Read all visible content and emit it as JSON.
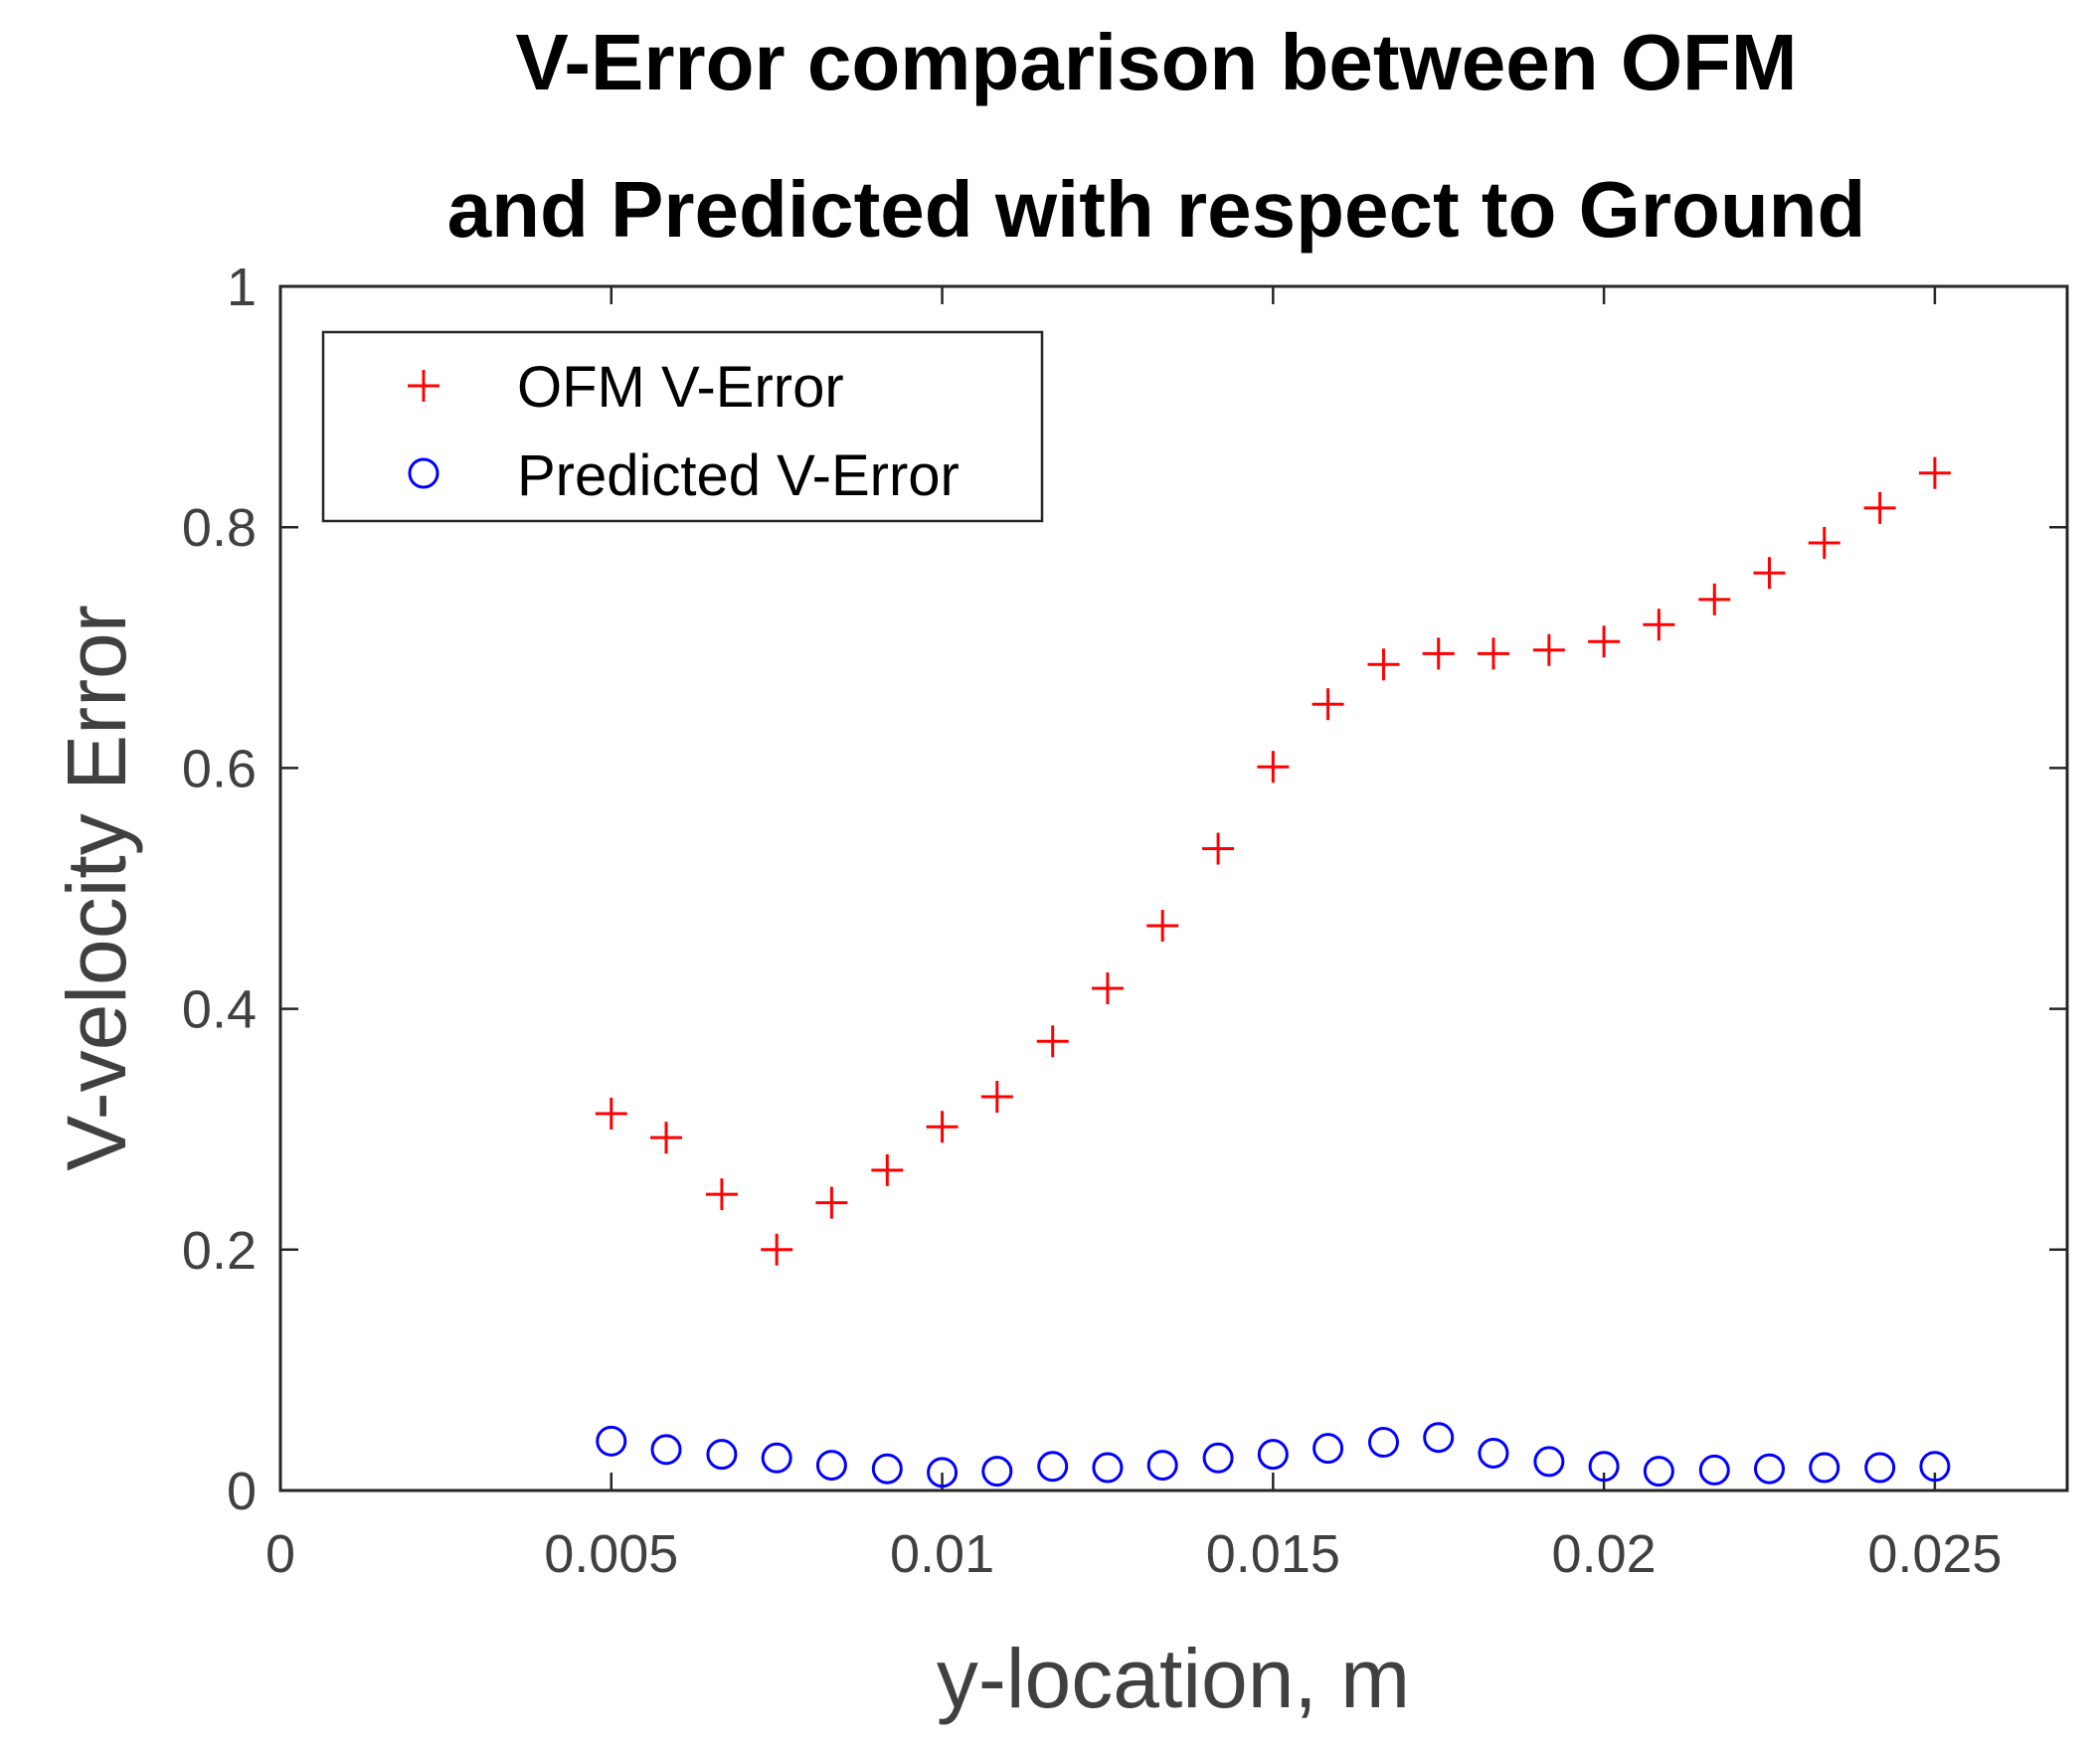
{
  "chart_data": {
    "type": "scatter",
    "title": [
      "V-Error comparison between OFM",
      "and Predicted with respect to Ground"
    ],
    "xlabel": "y-location, m",
    "ylabel": "V-velocity Error",
    "xlim": [
      0,
      0.027
    ],
    "ylim": [
      0,
      1
    ],
    "xticks": [
      0,
      0.005,
      0.01,
      0.015,
      0.02,
      0.025
    ],
    "xtick_labels": [
      "0",
      "0.005",
      "0.01",
      "0.015",
      "0.02",
      "0.025"
    ],
    "yticks": [
      0,
      0.2,
      0.4,
      0.6,
      0.8,
      1
    ],
    "ytick_labels": [
      "0",
      "0.2",
      "0.4",
      "0.6",
      "0.8",
      "1"
    ],
    "grid": false,
    "legend_position": "top-left",
    "x": [
      0.005,
      0.00583,
      0.00667,
      0.0075,
      0.00833,
      0.00917,
      0.01,
      0.01083,
      0.01167,
      0.0125,
      0.01333,
      0.01417,
      0.015,
      0.01583,
      0.01667,
      0.0175,
      0.01833,
      0.01917,
      0.02,
      0.02083,
      0.02167,
      0.0225,
      0.02333,
      0.02417,
      0.025
    ],
    "series": [
      {
        "name": "OFM V-Error",
        "marker": "plus",
        "color": "#ff0000",
        "values": [
          0.313,
          0.293,
          0.246,
          0.2,
          0.239,
          0.266,
          0.302,
          0.327,
          0.373,
          0.417,
          0.469,
          0.533,
          0.601,
          0.653,
          0.686,
          0.695,
          0.695,
          0.698,
          0.705,
          0.719,
          0.74,
          0.762,
          0.787,
          0.816,
          0.845
        ]
      },
      {
        "name": "Predicted V-Error",
        "marker": "circle",
        "color": "#0000ff",
        "values": [
          0.041,
          0.034,
          0.03,
          0.027,
          0.021,
          0.018,
          0.015,
          0.016,
          0.02,
          0.019,
          0.021,
          0.027,
          0.03,
          0.035,
          0.04,
          0.044,
          0.031,
          0.024,
          0.02,
          0.016,
          0.017,
          0.018,
          0.019,
          0.019,
          0.02
        ]
      }
    ]
  }
}
